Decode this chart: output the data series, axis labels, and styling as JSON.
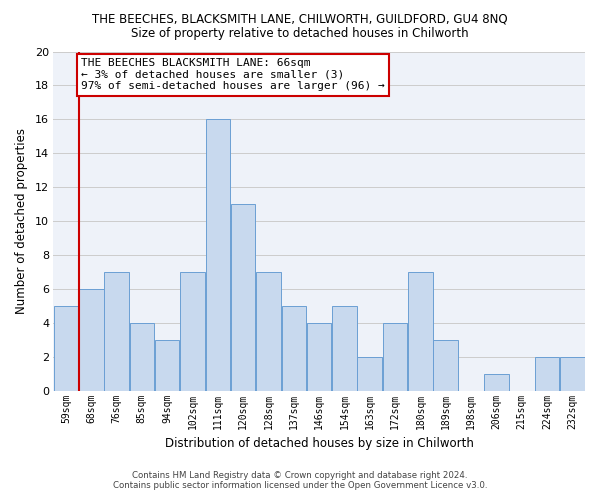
{
  "title": "THE BEECHES, BLACKSMITH LANE, CHILWORTH, GUILDFORD, GU4 8NQ",
  "subtitle": "Size of property relative to detached houses in Chilworth",
  "xlabel": "Distribution of detached houses by size in Chilworth",
  "ylabel": "Number of detached properties",
  "bar_labels": [
    "59sqm",
    "68sqm",
    "76sqm",
    "85sqm",
    "94sqm",
    "102sqm",
    "111sqm",
    "120sqm",
    "128sqm",
    "137sqm",
    "146sqm",
    "154sqm",
    "163sqm",
    "172sqm",
    "180sqm",
    "189sqm",
    "198sqm",
    "206sqm",
    "215sqm",
    "224sqm",
    "232sqm"
  ],
  "bar_heights": [
    5,
    6,
    7,
    4,
    3,
    7,
    16,
    11,
    7,
    5,
    4,
    5,
    2,
    4,
    7,
    3,
    0,
    1,
    0,
    2,
    2
  ],
  "bar_color": "#c8d9ee",
  "bar_edge_color": "#6b9fd4",
  "highlight_line_color": "#cc0000",
  "ylim": [
    0,
    20
  ],
  "yticks": [
    0,
    2,
    4,
    6,
    8,
    10,
    12,
    14,
    16,
    18,
    20
  ],
  "annotation_title": "THE BEECHES BLACKSMITH LANE: 66sqm",
  "annotation_line1": "← 3% of detached houses are smaller (3)",
  "annotation_line2": "97% of semi-detached houses are larger (96) →",
  "annotation_box_color": "#ffffff",
  "annotation_box_edge": "#cc0000",
  "grid_color": "#cccccc",
  "background_color": "#eef2f9",
  "footer_line1": "Contains HM Land Registry data © Crown copyright and database right 2024.",
  "footer_line2": "Contains public sector information licensed under the Open Government Licence v3.0."
}
